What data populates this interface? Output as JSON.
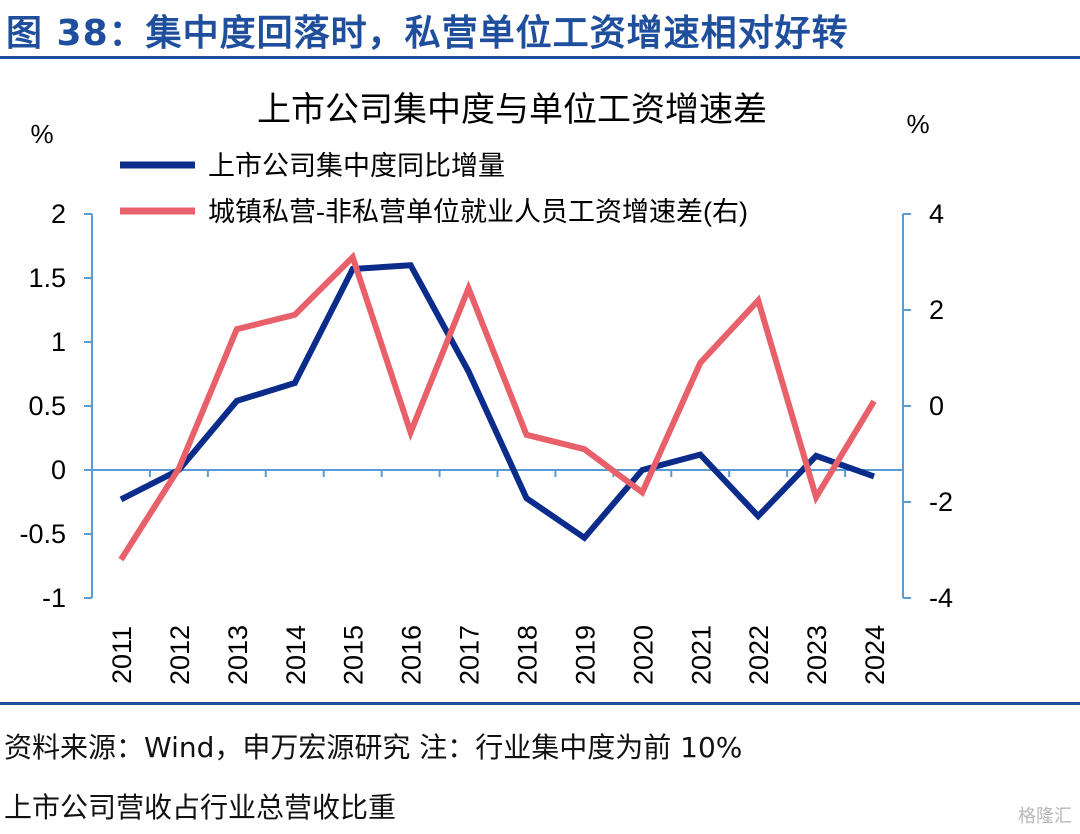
{
  "figure": {
    "title": "图 38：集中度回落时，私营单位工资增速相对好转",
    "source": "资料来源：Wind，申万宏源研究  注：行业集中度为前 10%",
    "source_cont": "上市公司营收占行业总营收比重",
    "watermark": "格隆汇"
  },
  "chart_data": {
    "type": "line",
    "title": "上市公司集中度与单位工资增速差",
    "ylabel_left": "%",
    "ylabel_right": "%",
    "categories": [
      "2011",
      "2012",
      "2013",
      "2014",
      "2015",
      "2016",
      "2017",
      "2018",
      "2019",
      "2020",
      "2021",
      "2022",
      "2023",
      "2024"
    ],
    "ylim_left": [
      -1,
      2
    ],
    "ylim_right": [
      -4,
      4
    ],
    "yticks_left": [
      "2",
      "1.5",
      "1",
      "0.5",
      "0",
      "-0.5",
      "-1"
    ],
    "yticks_right": [
      "4",
      "2",
      "0",
      "-2",
      "-4"
    ],
    "legend_position": "top-left",
    "grid": false,
    "series": [
      {
        "name": "上市公司集中度同比增量",
        "axis": "left",
        "color": "#0b2c8a",
        "values": [
          -0.23,
          0.0,
          0.54,
          0.68,
          1.57,
          1.6,
          0.77,
          -0.22,
          -0.53,
          0.0,
          0.12,
          -0.36,
          0.11,
          -0.05
        ]
      },
      {
        "name": "城镇私营-非私营单位就业人员工资增速差(右)",
        "axis": "right",
        "color": "#e8606a",
        "values": [
          -3.2,
          -1.3,
          1.6,
          1.9,
          3.1,
          -0.55,
          2.45,
          -0.6,
          -0.9,
          -1.8,
          0.9,
          2.2,
          -1.9,
          0.1
        ]
      }
    ]
  }
}
